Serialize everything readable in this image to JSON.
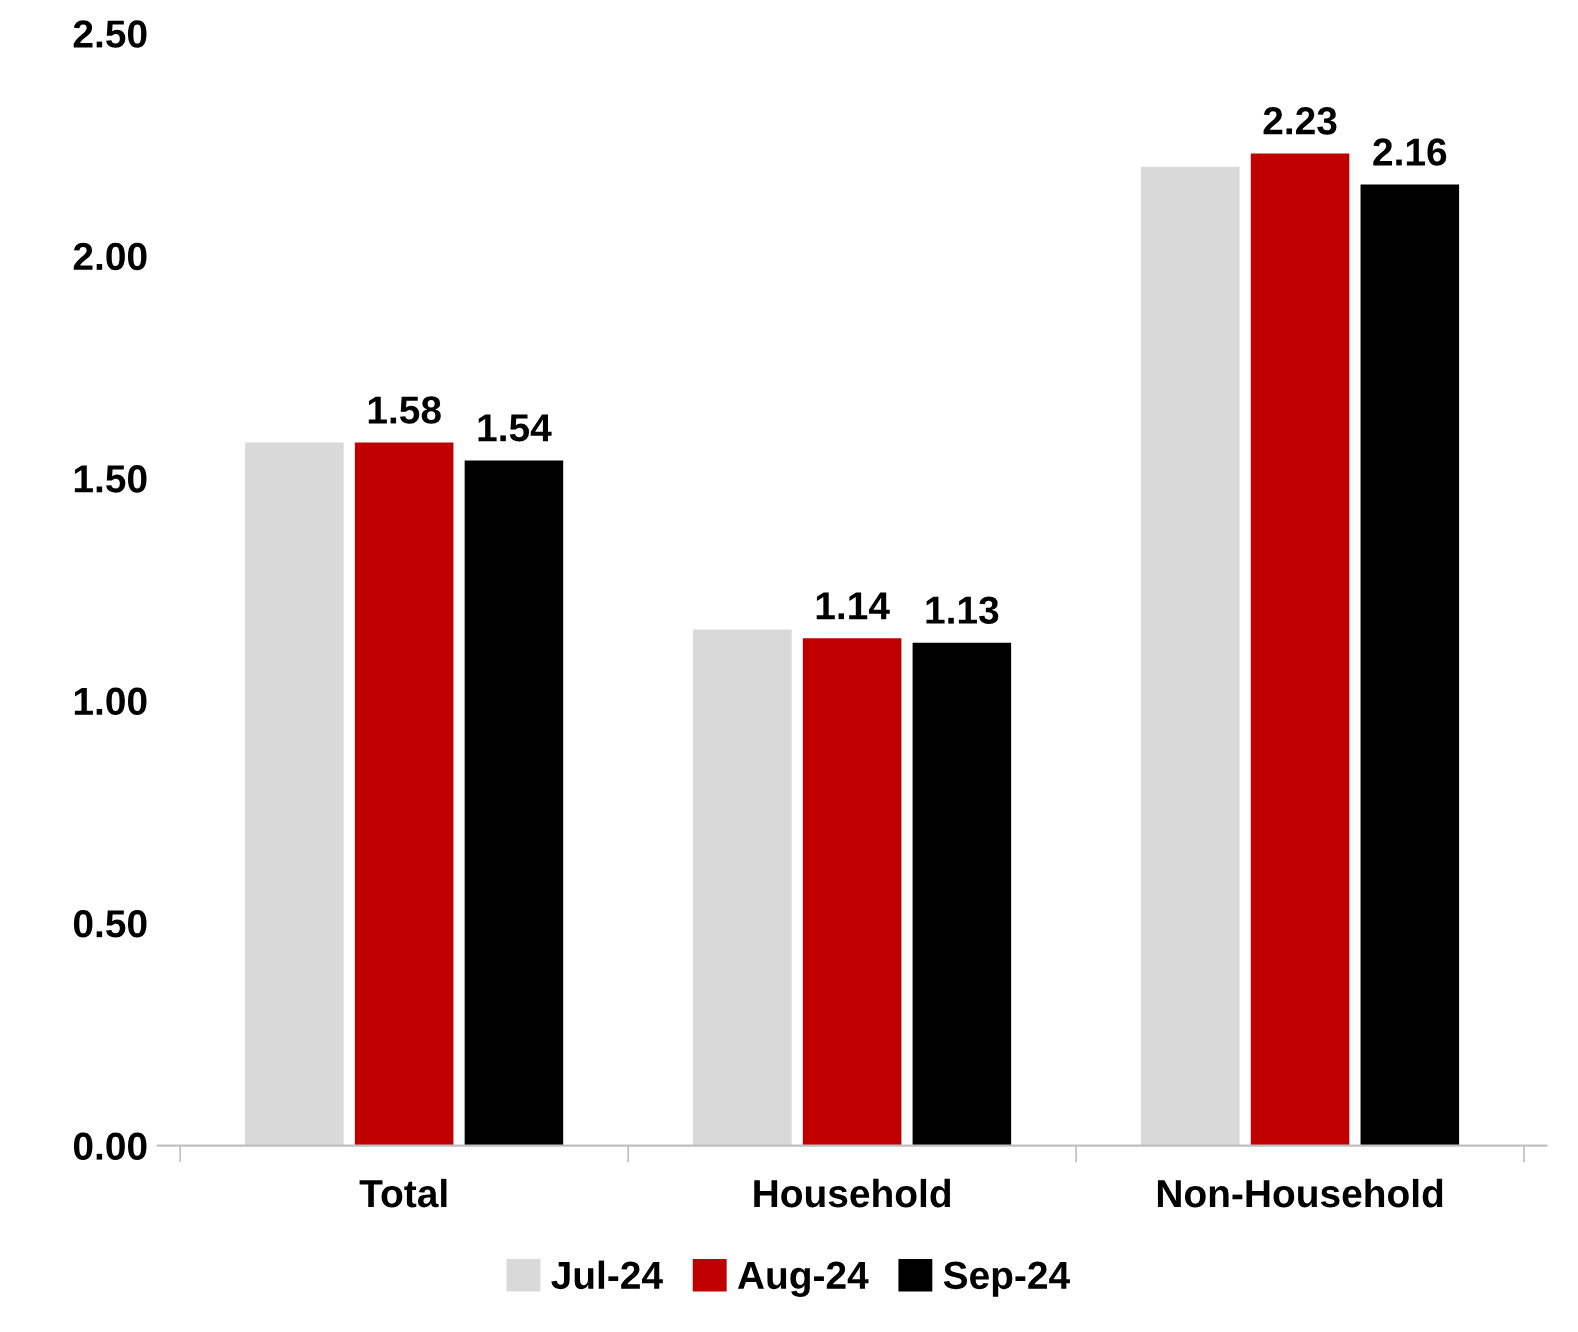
{
  "chart_data": {
    "type": "bar",
    "categories": [
      "Total",
      "Household",
      "Non-Household"
    ],
    "series": [
      {
        "name": "Jul-24",
        "color": "#d9d9d9",
        "values": [
          1.58,
          1.16,
          2.2
        ],
        "value_labels": [
          null,
          null,
          null
        ]
      },
      {
        "name": "Aug-24",
        "color": "#c00000",
        "values": [
          1.58,
          1.14,
          2.23
        ],
        "value_labels": [
          "1.58",
          "1.14",
          "2.23"
        ]
      },
      {
        "name": "Sep-24",
        "color": "#000000",
        "values": [
          1.54,
          1.13,
          2.16
        ],
        "value_labels": [
          "1.54",
          "1.13",
          "2.16"
        ]
      }
    ],
    "ylim": [
      0,
      2.5
    ],
    "yticks": [
      {
        "value": 0,
        "label": "0.00"
      },
      {
        "value": 0.5,
        "label": "0.50"
      },
      {
        "value": 1,
        "label": "1.00"
      },
      {
        "value": 1.5,
        "label": "1.50"
      },
      {
        "value": 2,
        "label": "2.00"
      },
      {
        "value": 2.5,
        "label": "2.50"
      }
    ],
    "grid": false,
    "legend": "bottom"
  }
}
